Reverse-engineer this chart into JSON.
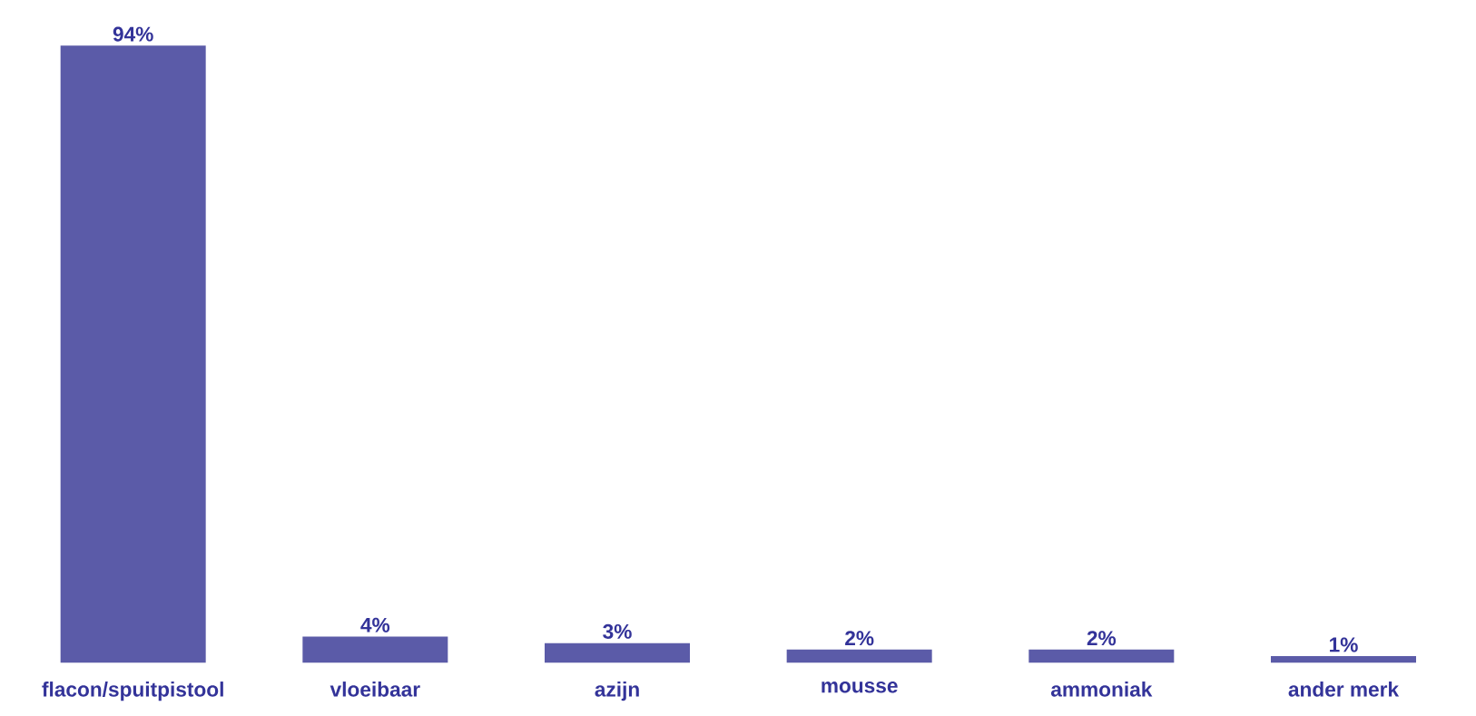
{
  "chart_data": {
    "type": "bar",
    "categories": [
      "flacon/spuitpistool",
      "vloeibaar",
      "azijn",
      "mousse",
      "ammoniak",
      "ander merk"
    ],
    "values": [
      94,
      4,
      3,
      2,
      2,
      1
    ],
    "value_labels": [
      "94%",
      "4%",
      "3%",
      "2%",
      "2%",
      "1%"
    ],
    "color": "#5b5ba8"
  }
}
